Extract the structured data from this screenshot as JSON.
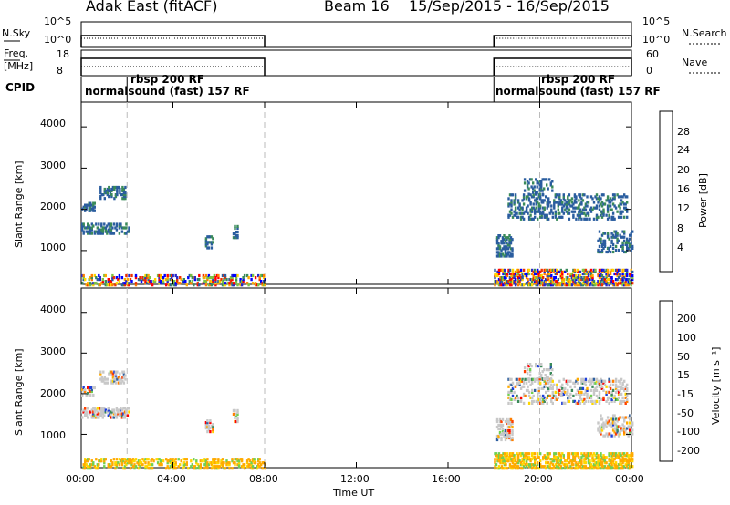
{
  "header": {
    "title": "Adak East (fitACF)",
    "beam": "Beam 16",
    "date_range": "15/Sep/2015 - 16/Sep/2015"
  },
  "status_panels": {
    "nsky_label": "N.Sky",
    "nsky_ticks": [
      "10^5",
      "10^0"
    ],
    "nsearch_label": "N.Search",
    "nsearch_ticks": [
      "10^5",
      "10^0"
    ],
    "freq_label": "Freq.",
    "freq_unit": "[MHz]",
    "freq_ticks": [
      "18",
      "8"
    ],
    "nave_label": "Nave",
    "nave_ticks": [
      "60",
      "0"
    ],
    "cpid_label": "CPID",
    "cpid_entries": [
      {
        "text": "normalsound (fast) 157 RF"
      },
      {
        "text": "rbsp 200 RF"
      },
      {
        "text": "normalsound (fast) 157 RF"
      },
      {
        "text": "rbsp 200 RF"
      }
    ]
  },
  "y_axis": {
    "label": "Slant Range [km]",
    "ticks": [
      "4000",
      "3000",
      "2000",
      "1000"
    ]
  },
  "x_axis": {
    "label": "Time UT",
    "ticks": [
      "00:00",
      "04:00",
      "08:00",
      "12:00",
      "16:00",
      "20:00",
      "00:00"
    ]
  },
  "power_scale": {
    "label": "Power [dB]",
    "ticks": [
      "28",
      "24",
      "20",
      "16",
      "12",
      "8",
      "4"
    ],
    "colors": [
      "#ff0000",
      "#ee3000",
      "#ff7f00",
      "#ffaa00",
      "#ffd700",
      "#7cc242",
      "#3a8a5a",
      "#2a5d9f",
      "#2828c8",
      "#0000ff"
    ]
  },
  "velocity_scale": {
    "label": "Velocity [m s⁻¹]",
    "ticks": [
      "200",
      "100",
      "50",
      "15",
      "-15",
      "-50",
      "-100",
      "-200"
    ],
    "colors": [
      "#1e3fd8",
      "#2e5fa0",
      "#3a8a5a",
      "#70d050",
      "#c8c8c8",
      "#ffd700",
      "#ffaa00",
      "#ff7f00",
      "#ff4000",
      "#ff0000"
    ]
  },
  "chart_data": {
    "type": "heatmap",
    "x_range_hours": [
      0,
      24
    ],
    "y_range_km": [
      180,
      4600
    ],
    "operation_periods_hours": [
      [
        0,
        8
      ],
      [
        18,
        24
      ]
    ],
    "mode_change_hours": [
      2,
      20
    ],
    "echo_regions": [
      {
        "t_start": 0.0,
        "t_end": 8.0,
        "r_start": 200,
        "r_end": 450,
        "density": 0.35,
        "kind": "ground"
      },
      {
        "t_start": 18.0,
        "t_end": 24.0,
        "r_start": 200,
        "r_end": 600,
        "density": 0.55,
        "kind": "ground"
      },
      {
        "t_start": 0.0,
        "t_end": 2.1,
        "r_start": 1450,
        "r_end": 1700,
        "density": 0.5,
        "kind": "ionospheric"
      },
      {
        "t_start": 0.0,
        "t_end": 0.6,
        "r_start": 2000,
        "r_end": 2200,
        "density": 0.5,
        "kind": "ionospheric"
      },
      {
        "t_start": 0.8,
        "t_end": 1.9,
        "r_start": 2300,
        "r_end": 2600,
        "density": 0.45,
        "kind": "ionospheric"
      },
      {
        "t_start": 5.4,
        "t_end": 5.7,
        "r_start": 1100,
        "r_end": 1400,
        "density": 0.5,
        "kind": "ionospheric"
      },
      {
        "t_start": 6.6,
        "t_end": 6.8,
        "r_start": 1350,
        "r_end": 1650,
        "density": 0.5,
        "kind": "ionospheric"
      },
      {
        "t_start": 18.1,
        "t_end": 18.8,
        "r_start": 900,
        "r_end": 1400,
        "density": 0.55,
        "kind": "ionospheric"
      },
      {
        "t_start": 18.6,
        "t_end": 23.8,
        "r_start": 1800,
        "r_end": 2400,
        "density": 0.3,
        "kind": "ionospheric"
      },
      {
        "t_start": 22.5,
        "t_end": 24.0,
        "r_start": 1000,
        "r_end": 1500,
        "density": 0.3,
        "kind": "ionospheric"
      },
      {
        "t_start": 19.3,
        "t_end": 20.5,
        "r_start": 2400,
        "r_end": 2800,
        "density": 0.25,
        "kind": "ionospheric"
      }
    ]
  }
}
